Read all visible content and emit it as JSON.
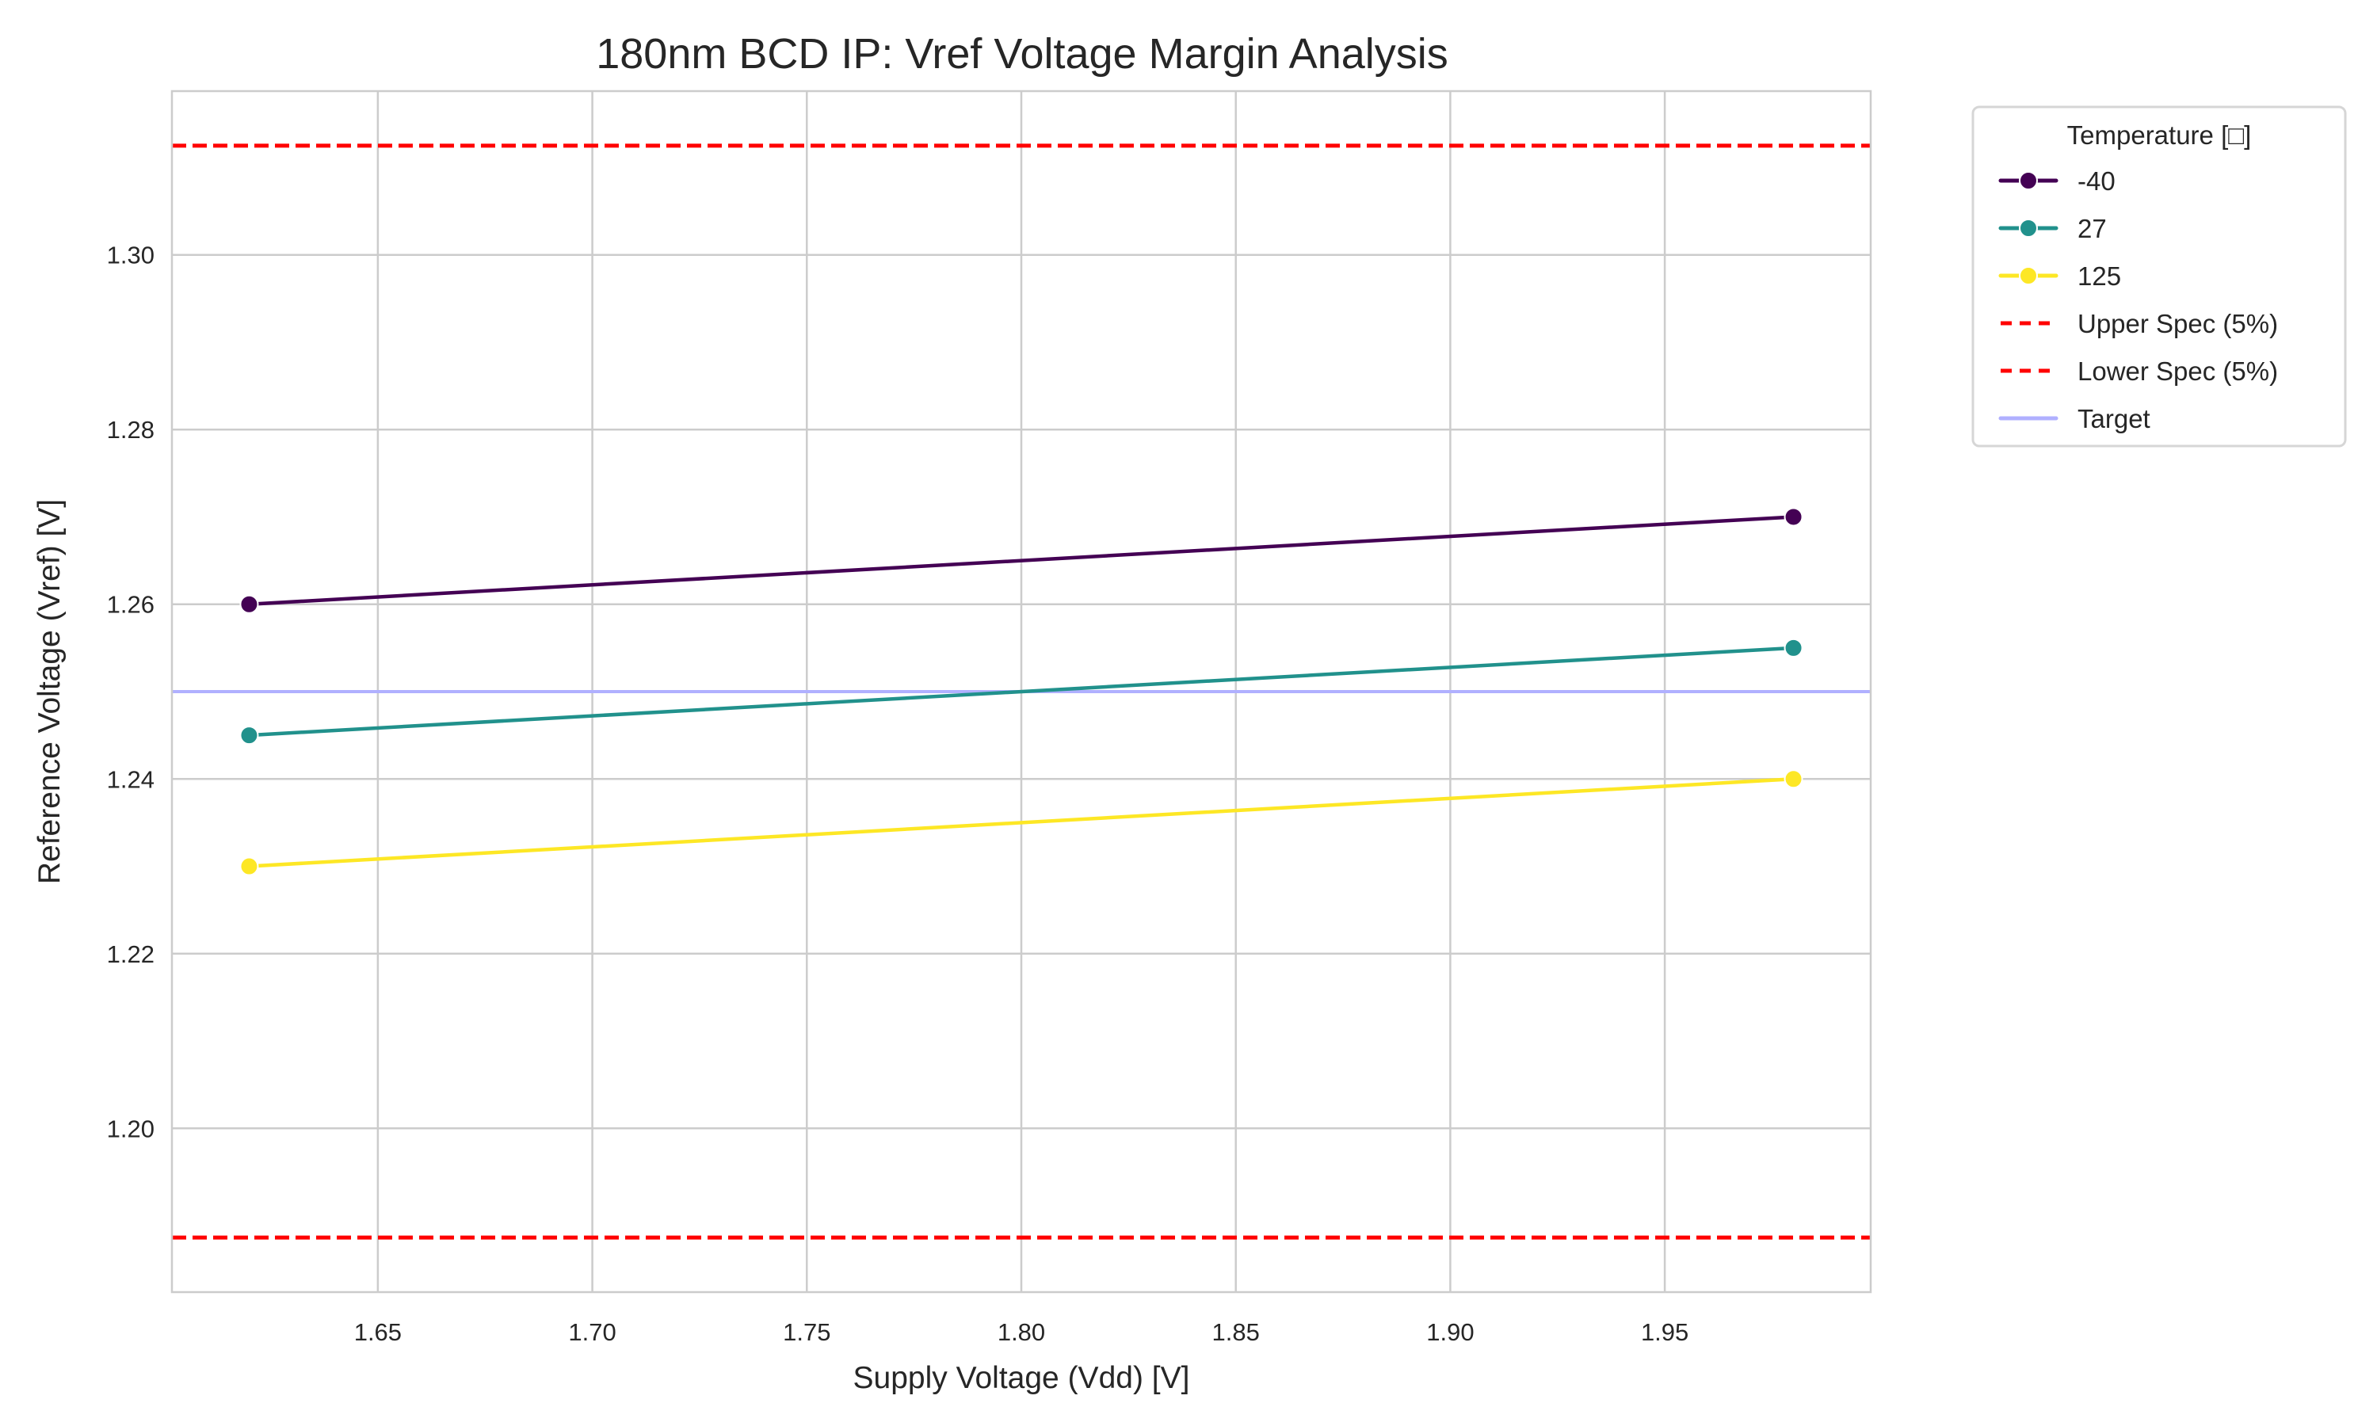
{
  "chart_data": {
    "type": "line",
    "title": "180nm BCD IP: Vref Voltage Margin Analysis",
    "xlabel": "Supply Voltage (Vdd) [V]",
    "ylabel": "Reference Voltage (Vref) [V]",
    "xlim": [
      1.602,
      1.998
    ],
    "ylim": [
      1.18125,
      1.31875
    ],
    "xticks": [
      "1.65",
      "1.70",
      "1.75",
      "1.80",
      "1.85",
      "1.90",
      "1.95"
    ],
    "xtick_values": [
      1.65,
      1.7,
      1.75,
      1.8,
      1.85,
      1.9,
      1.95
    ],
    "yticks": [
      "1.20",
      "1.22",
      "1.24",
      "1.26",
      "1.28",
      "1.30"
    ],
    "ytick_values": [
      1.2,
      1.22,
      1.24,
      1.26,
      1.28,
      1.3
    ],
    "grid": true,
    "x": [
      1.62,
      1.98
    ],
    "series": [
      {
        "name": "-40",
        "values": [
          1.26,
          1.27
        ],
        "color": "#440154"
      },
      {
        "name": "27",
        "values": [
          1.245,
          1.255
        ],
        "color": "#21918c"
      },
      {
        "name": "125",
        "values": [
          1.23,
          1.24
        ],
        "color": "#fde725"
      }
    ],
    "reference_lines": [
      {
        "name": "Upper Spec (5%)",
        "y": 1.3125,
        "color": "#ff0000",
        "style": "dashed"
      },
      {
        "name": "Lower Spec (5%)",
        "y": 1.1875,
        "color": "#ff0000",
        "style": "dashed"
      },
      {
        "name": "Target",
        "y": 1.25,
        "color": "#b0b0ff",
        "style": "solid"
      }
    ],
    "legend": {
      "title": "Temperature [□]",
      "placement": "outside-top-right"
    }
  }
}
